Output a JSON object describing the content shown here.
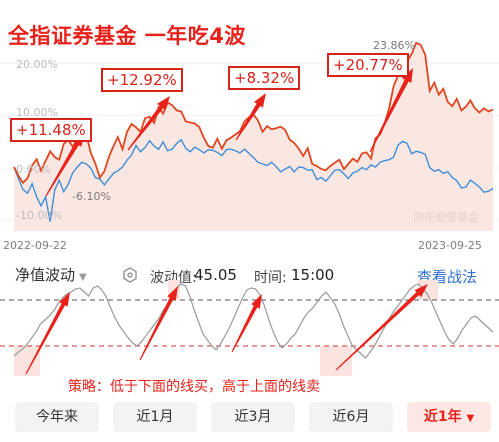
{
  "headline": "全指证券基金 一年吃4波",
  "gain_labels": [
    "+11.48%",
    "+12.92%",
    "+8.32%",
    "+20.77%"
  ],
  "y_ticks": [
    "20.00%",
    "10.00%",
    "0.00%",
    "-10.00%"
  ],
  "peak_label": "23.86%",
  "trough_label": "-6.10%",
  "watermark": "同花顺爱基金",
  "date_start": "2022-09-22",
  "date_end": "2023-09-25",
  "controls": {
    "selector": "净值波动",
    "selector_caret": "▼",
    "wave_label": "波动值:",
    "wave_value": "45.05",
    "time_label": "时间:",
    "time_value": "15:00",
    "strategy_link": "查看战法"
  },
  "strategy_note": "策略：低于下面的线买，高于上面的线卖",
  "tabs": [
    {
      "label": "今年来",
      "active": false
    },
    {
      "label": "近1月",
      "active": false
    },
    {
      "label": "近3月",
      "active": false
    },
    {
      "label": "近6月",
      "active": false
    },
    {
      "label": "近1年",
      "active": true
    }
  ],
  "active_tab_caret": "▼",
  "colors": {
    "fund_line": "#e0461f",
    "index_line": "#3f8ed8",
    "accent": "#e8221a",
    "link": "#2c6fd6",
    "oscillator_line": "#9a9a9a"
  },
  "chart_data": {
    "type": "line",
    "ylim": [
      -12,
      25
    ],
    "y_ticks": [
      20,
      10,
      0,
      -10
    ],
    "x_start": "2022-09-22",
    "x_end": "2023-09-25",
    "series": [
      {
        "values": [
          0.2,
          -1.5,
          -2.8,
          -1.9,
          0.5,
          1.7,
          -0.5,
          1.4,
          3.2,
          2.1,
          1.6,
          4.6,
          5.4,
          4.1,
          5.5,
          6.1,
          6.4,
          2.9,
          0.9,
          -1.8,
          -0.6,
          2.1,
          4.2,
          5.9,
          3.6,
          6.9,
          8.4,
          7.8,
          6.9,
          9.5,
          9.8,
          8.6,
          11.6,
          10.4,
          12.5,
          12.0,
          11.0,
          10.8,
          8.9,
          8.7,
          8.5,
          7.8,
          5.8,
          4.2,
          3.9,
          5.6,
          3.7,
          5.3,
          5.8,
          6.4,
          7.0,
          8.9,
          9.7,
          10.2,
          9.1,
          6.9,
          8.0,
          7.4,
          7.6,
          7.9,
          7.3,
          5.4,
          4.8,
          3.7,
          2.3,
          3.8,
          0.8,
          0.4,
          -0.2,
          -0.4,
          0.4,
          1.0,
          1.6,
          -0.2,
          0.8,
          1.8,
          1.2,
          2.8,
          3.0,
          1.8,
          5.7,
          6.4,
          8.4,
          11.4,
          15.6,
          17.7,
          19.2,
          20.4,
          21.8,
          23.9,
          23.5,
          21.6,
          14.7,
          16.3,
          14.0,
          15.1,
          12.6,
          11.8,
          13.2,
          11.0,
          11.7,
          12.9,
          11.4,
          10.6,
          11.4,
          10.8,
          11.2
        ]
      },
      {
        "values": [
          0.2,
          -2.0,
          -4.1,
          -4.8,
          -3.0,
          -5.5,
          -7.2,
          -5.5,
          -10.2,
          -4.2,
          -2.3,
          -4.5,
          -3.1,
          -0.9,
          0.2,
          1.1,
          0.8,
          0.0,
          -1.8,
          -2.1,
          -3.2,
          -2.1,
          -1.0,
          -0.5,
          0.2,
          1.5,
          2.5,
          4.3,
          3.1,
          3.9,
          5.2,
          4.2,
          3.6,
          5.0,
          3.3,
          3.6,
          4.7,
          5.4,
          3.8,
          3.1,
          4.0,
          3.5,
          2.9,
          3.5,
          3.4,
          3.0,
          2.4,
          3.5,
          3.6,
          3.3,
          2.9,
          3.6,
          2.8,
          2.0,
          1.1,
          0.8,
          0.5,
          1.1,
          0.3,
          -0.7,
          -0.2,
          0.3,
          -0.7,
          0.2,
          0.1,
          -0.4,
          -0.3,
          -2.2,
          -1.8,
          -2.5,
          -1.5,
          -0.4,
          -0.3,
          -1.1,
          -2.0,
          -0.9,
          -0.6,
          0.1,
          -0.3,
          0.6,
          0.2,
          1.1,
          1.4,
          1.6,
          2.1,
          4.4,
          5.1,
          4.7,
          2.7,
          3.2,
          3.0,
          2.6,
          0.1,
          -0.6,
          -0.3,
          -1.0,
          -0.7,
          -1.8,
          -2.4,
          -3.8,
          -3.6,
          -2.3,
          -2.9,
          -3.6,
          -4.6,
          -4.4,
          -3.9
        ]
      }
    ]
  }
}
